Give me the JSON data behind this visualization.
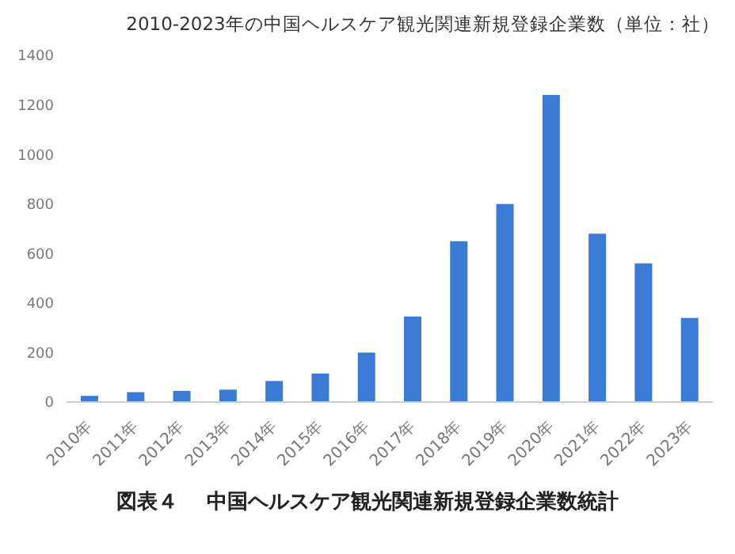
{
  "chart_data": {
    "type": "bar",
    "title": "2010-2023年の中国ヘルスケア観光関連新規登録企業数（単位：社）",
    "categories": [
      "2010年",
      "2011年",
      "2012年",
      "2013年",
      "2014年",
      "2015年",
      "2016年",
      "2017年",
      "2018年",
      "2019年",
      "2020年",
      "2021年",
      "2022年",
      "2023年"
    ],
    "values": [
      25,
      40,
      45,
      50,
      85,
      115,
      200,
      345,
      650,
      800,
      1240,
      680,
      560,
      340
    ],
    "color": "#3a7bd5",
    "ylim": [
      0,
      1400
    ],
    "yticks": [
      0,
      200,
      400,
      600,
      800,
      1000,
      1200,
      1400
    ],
    "grid": false,
    "annotations": [
      "図表４　 中国ヘルスケア観光関連新規登録企業数統計"
    ]
  }
}
